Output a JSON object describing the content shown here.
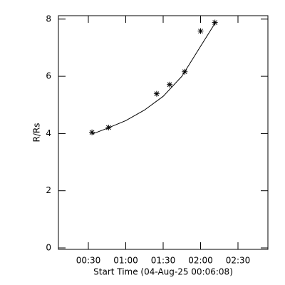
{
  "chart_data": {
    "type": "scatter",
    "x_label": "Start Time (04-Aug-25 00:06:08)",
    "y_label": "R/Rs",
    "x": [
      32.9,
      46.2,
      84.8,
      95.2,
      107.3,
      120,
      131.5
    ],
    "values": [
      4.04,
      4.21,
      5.39,
      5.71,
      6.16,
      7.58,
      7.88
    ],
    "marker": "asterisk",
    "color": "#000000",
    "fit": {
      "x": [
        33,
        45,
        60,
        75,
        90,
        105,
        120,
        131.5
      ],
      "values": [
        3.98,
        4.18,
        4.45,
        4.82,
        5.3,
        6.0,
        7.05,
        7.85
      ]
    },
    "xlim": [
      6,
      174
    ],
    "ylim": [
      -0.05,
      8.12
    ],
    "xticks": [
      {
        "value": 30,
        "label": "00:30"
      },
      {
        "value": 60,
        "label": "01:00"
      },
      {
        "value": 90,
        "label": "01:30"
      },
      {
        "value": 120,
        "label": "02:00"
      },
      {
        "value": 150,
        "label": "02:30"
      }
    ],
    "yticks": [
      0,
      2,
      4,
      6,
      8
    ]
  }
}
